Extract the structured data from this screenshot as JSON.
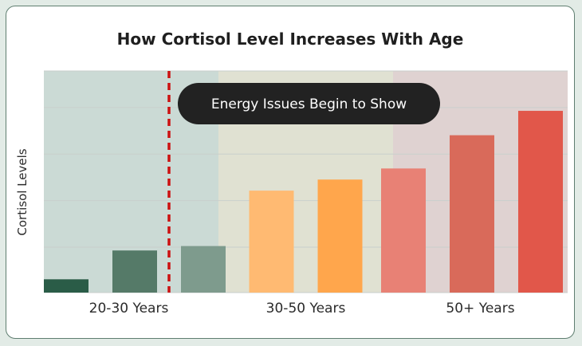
{
  "chart_data": {
    "type": "bar",
    "title": "How Cortisol Level Increases With Age",
    "xlabel": "",
    "ylabel": "Cortisol Levels",
    "ylim": [
      0,
      100
    ],
    "grid": true,
    "y_ticks_visible": false,
    "values": [
      6,
      19,
      21,
      46,
      51,
      56,
      71,
      82
    ],
    "colors": [
      "#2a5c47",
      "#557a68",
      "#7e9b8d",
      "#ffba72",
      "#ffa64c",
      "#e88175",
      "#d96a5a",
      "#e1574a"
    ],
    "groups": [
      {
        "label": "20-30 Years",
        "bar_count": 3,
        "band_color": "#cbdad5"
      },
      {
        "label": "30-50 Years",
        "bar_count": 2,
        "band_color": "#e0e1d2"
      },
      {
        "label": "50+ Years",
        "bar_count": 3,
        "band_color": "#dfd2d1"
      }
    ],
    "threshold": {
      "after_bar_index": 1,
      "color": "#cc1111",
      "style": "dashed"
    },
    "annotation": {
      "text": "Energy Issues Begin to Show",
      "background": "#222222"
    }
  }
}
